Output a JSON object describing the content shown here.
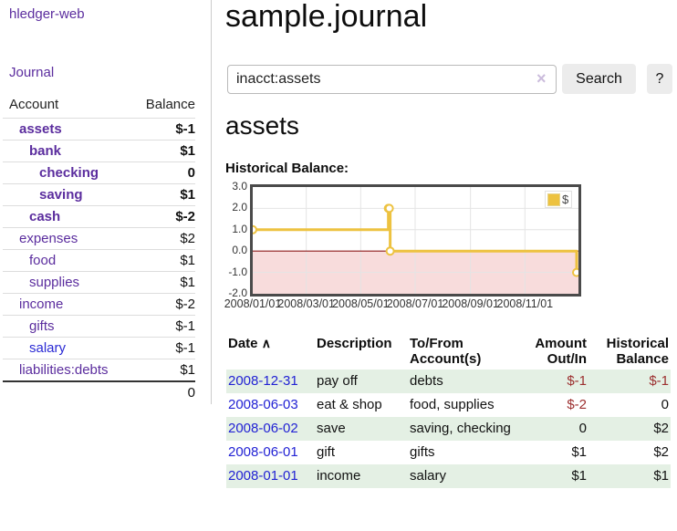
{
  "app": {
    "brand": "hledger-web",
    "nav_journal": "Journal"
  },
  "sidebar": {
    "header": {
      "account": "Account",
      "balance": "Balance"
    },
    "accounts": [
      {
        "label": "assets",
        "level": 1,
        "bold": true,
        "balance": "$-1",
        "balance_class": "neg-strong"
      },
      {
        "label": "bank",
        "level": 2,
        "bold": true,
        "balance": "$1",
        "balance_class": ""
      },
      {
        "label": "checking",
        "level": 3,
        "bold": true,
        "balance": "0",
        "balance_class": ""
      },
      {
        "label": "saving",
        "level": 3,
        "bold": true,
        "balance": "$1",
        "balance_class": ""
      },
      {
        "label": "cash",
        "level": 2,
        "bold": true,
        "balance": "$-2",
        "balance_class": "neg-strong"
      },
      {
        "label": "expenses",
        "level": 1,
        "bold": false,
        "balance": "$2",
        "balance_class": ""
      },
      {
        "label": "food",
        "level": 2,
        "bold": false,
        "balance": "$1",
        "balance_class": ""
      },
      {
        "label": "supplies",
        "level": 2,
        "bold": false,
        "balance": "$1",
        "balance_class": ""
      },
      {
        "label": "income",
        "level": 1,
        "bold": false,
        "balance": "$-2",
        "balance_class": "neg-soft"
      },
      {
        "label": "gifts",
        "level": 2,
        "bold": false,
        "balance": "$-1",
        "balance_class": "neg-soft"
      },
      {
        "label": "salary",
        "level": 2,
        "bold": false,
        "balance": "$-1",
        "balance_class": "neg-soft",
        "blue": true
      },
      {
        "label": "liabilities:debts",
        "level": 1,
        "bold": false,
        "balance": "$1",
        "balance_class": ""
      }
    ],
    "total": "0"
  },
  "header": {
    "title": "sample.journal"
  },
  "search": {
    "value": "inacct:assets",
    "clear_icon": "×",
    "button_label": "Search",
    "help_label": "?"
  },
  "account_page": {
    "title": "assets",
    "chart_label": "Historical Balance:"
  },
  "chart_data": {
    "type": "line",
    "step": true,
    "title": "Historical Balance of assets",
    "series": [
      {
        "name": "$",
        "color": "#edc240",
        "points": [
          [
            "2008-01-01",
            1
          ],
          [
            "2008-06-01",
            2
          ],
          [
            "2008-06-02",
            2
          ],
          [
            "2008-06-03",
            0
          ],
          [
            "2008-12-31",
            -1
          ]
        ]
      }
    ],
    "x_range": [
      "2008-01-01",
      "2008-12-31"
    ],
    "x_ticks": [
      {
        "date": "2008-01-01",
        "label": "2008/01/01"
      },
      {
        "date": "2008-03-01",
        "label": "2008/03/01"
      },
      {
        "date": "2008-05-01",
        "label": "2008/05/01"
      },
      {
        "date": "2008-07-01",
        "label": "2008/07/01"
      },
      {
        "date": "2008-09-01",
        "label": "2008/09/01"
      },
      {
        "date": "2008-11-01",
        "label": "2008/11/01"
      }
    ],
    "ylim": [
      -2,
      3
    ],
    "y_ticks": [
      {
        "v": 3,
        "label": "3.0"
      },
      {
        "v": 2,
        "label": "2.0"
      },
      {
        "v": 1,
        "label": "1.0"
      },
      {
        "v": 0,
        "label": "0.0"
      },
      {
        "v": -1,
        "label": "-1.0"
      },
      {
        "v": -2,
        "label": "-2.0"
      }
    ],
    "grid": true,
    "legend": {
      "position": "top-right",
      "label": "$",
      "swatch": "#edc240"
    },
    "negative_region_color": "#f8dcdc",
    "zero_line_color": "#8e1c1c"
  },
  "register": {
    "columns": {
      "date": "Date",
      "description": "Description",
      "accounts": "To/From Account(s)",
      "amount": "Amount Out/In",
      "balance": "Historical Balance"
    },
    "sort_icon": "∧",
    "rows": [
      {
        "date": "2008-12-31",
        "description": "pay off",
        "accounts": "debts",
        "amount": "$-1",
        "amount_class": "neg-reg",
        "balance": "$-1",
        "balance_class": "neg-reg",
        "shaded": true
      },
      {
        "date": "2008-06-03",
        "description": "eat & shop",
        "accounts": "food, supplies",
        "amount": "$-2",
        "amount_class": "neg-reg",
        "balance": "0",
        "balance_class": "",
        "shaded": false
      },
      {
        "date": "2008-06-02",
        "description": "save",
        "accounts": "saving, checking",
        "amount": "0",
        "amount_class": "",
        "balance": "$2",
        "balance_class": "",
        "shaded": true
      },
      {
        "date": "2008-06-01",
        "description": "gift",
        "accounts": "gifts",
        "amount": "$1",
        "amount_class": "",
        "balance": "$2",
        "balance_class": "",
        "shaded": false
      },
      {
        "date": "2008-01-01",
        "description": "income",
        "accounts": "salary",
        "amount": "$1",
        "amount_class": "",
        "balance": "$1",
        "balance_class": "",
        "shaded": true
      }
    ]
  },
  "colors": {
    "link_purple": "#5b2d9e",
    "link_blue": "#2222d4",
    "negative_strong": "#8c1616",
    "negative_soft": "#c06e6e",
    "negative_register": "#9c2f2f",
    "row_shade_green": "#e4f0e4",
    "chart_line_gold": "#edc240",
    "chart_negative_region": "#f8dcdc",
    "chart_zero_line": "#8e1c1c",
    "button_gray": "#ececec"
  }
}
